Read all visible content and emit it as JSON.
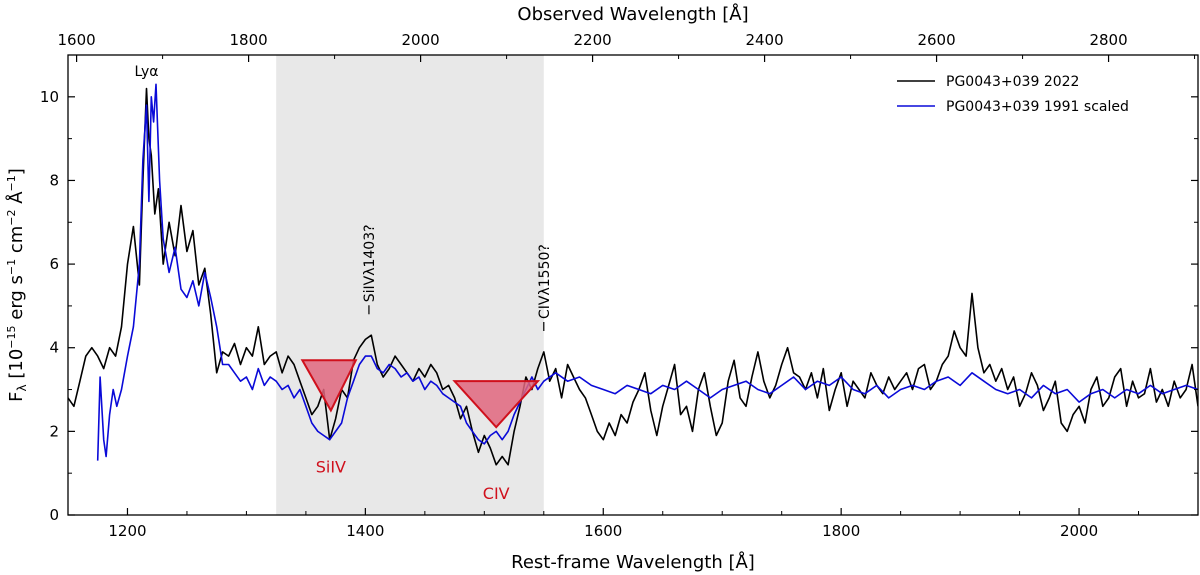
{
  "chart_data": {
    "type": "line",
    "title": "",
    "xlabel": "Rest-frame Wavelength [Å]",
    "x2label": "Observed Wavelength [Å]",
    "ylabel": "F_λ [10^-15 erg s^-1 cm^-2 Å^-1]",
    "xlim": [
      1150,
      2100
    ],
    "ylim": [
      0,
      11
    ],
    "observed_xlim": [
      1590,
      2904
    ],
    "x_ticks": [
      1200,
      1400,
      1600,
      1800,
      2000
    ],
    "x_tick_labels": [
      "1200",
      "1400",
      "1600",
      "1800",
      "2000"
    ],
    "y_ticks": [
      0,
      2,
      4,
      6,
      8,
      10
    ],
    "y_tick_labels": [
      "0",
      "2",
      "4",
      "6",
      "8",
      "10"
    ],
    "top_ticks": [
      1600,
      1800,
      2000,
      2200,
      2400,
      2600,
      2800
    ],
    "top_tick_labels": [
      "1600",
      "1800",
      "2000",
      "2200",
      "2400",
      "2600",
      "2800"
    ],
    "shaded_region": [
      1325,
      1550
    ],
    "legend_position": "top-right",
    "series": [
      {
        "name": "PG0043+039 2022",
        "color": "#000000",
        "x": [
          1150,
          1155,
          1160,
          1165,
          1170,
          1175,
          1180,
          1185,
          1190,
          1195,
          1200,
          1205,
          1210,
          1213,
          1216,
          1218,
          1220,
          1223,
          1226,
          1230,
          1235,
          1240,
          1245,
          1250,
          1255,
          1260,
          1265,
          1270,
          1275,
          1280,
          1285,
          1290,
          1295,
          1300,
          1305,
          1310,
          1315,
          1320,
          1325,
          1330,
          1335,
          1340,
          1345,
          1350,
          1355,
          1360,
          1365,
          1370,
          1375,
          1380,
          1385,
          1390,
          1395,
          1400,
          1405,
          1410,
          1415,
          1420,
          1425,
          1430,
          1435,
          1440,
          1445,
          1450,
          1455,
          1460,
          1465,
          1470,
          1475,
          1480,
          1485,
          1490,
          1495,
          1500,
          1505,
          1510,
          1515,
          1520,
          1525,
          1530,
          1535,
          1540,
          1545,
          1550,
          1555,
          1560,
          1565,
          1570,
          1575,
          1580,
          1585,
          1590,
          1595,
          1600,
          1605,
          1610,
          1615,
          1620,
          1625,
          1630,
          1635,
          1640,
          1645,
          1650,
          1655,
          1660,
          1665,
          1670,
          1675,
          1680,
          1685,
          1690,
          1695,
          1700,
          1705,
          1710,
          1715,
          1720,
          1725,
          1730,
          1735,
          1740,
          1745,
          1750,
          1755,
          1760,
          1765,
          1770,
          1775,
          1780,
          1785,
          1790,
          1795,
          1800,
          1805,
          1810,
          1815,
          1820,
          1825,
          1830,
          1835,
          1840,
          1845,
          1850,
          1855,
          1860,
          1865,
          1870,
          1875,
          1880,
          1885,
          1890,
          1895,
          1900,
          1905,
          1910,
          1915,
          1920,
          1925,
          1930,
          1935,
          1940,
          1945,
          1950,
          1955,
          1960,
          1965,
          1970,
          1975,
          1980,
          1985,
          1990,
          1995,
          2000,
          2005,
          2010,
          2015,
          2020,
          2025,
          2030,
          2035,
          2040,
          2045,
          2050,
          2055,
          2060,
          2065,
          2070,
          2075,
          2080,
          2085,
          2090,
          2095,
          2100
        ],
        "y": [
          2.8,
          2.6,
          3.2,
          3.8,
          4.0,
          3.8,
          3.5,
          4.0,
          3.8,
          4.5,
          6.0,
          6.9,
          5.5,
          8.0,
          10.2,
          9.0,
          8.6,
          7.2,
          7.8,
          6.0,
          7.0,
          6.2,
          7.4,
          6.3,
          6.8,
          5.5,
          5.9,
          4.8,
          3.4,
          3.9,
          3.8,
          4.1,
          3.6,
          4.0,
          3.8,
          4.5,
          3.6,
          3.8,
          3.9,
          3.4,
          3.8,
          3.6,
          3.2,
          2.8,
          2.4,
          2.6,
          3.0,
          1.8,
          2.3,
          3.0,
          2.8,
          3.7,
          4.0,
          4.2,
          4.3,
          3.6,
          3.3,
          3.5,
          3.8,
          3.6,
          3.4,
          3.2,
          3.5,
          3.3,
          3.6,
          3.4,
          3.0,
          3.1,
          2.8,
          2.3,
          2.6,
          2.0,
          1.5,
          1.9,
          1.6,
          1.2,
          1.4,
          1.2,
          2.0,
          2.6,
          3.3,
          3.0,
          3.5,
          3.9,
          3.2,
          3.5,
          2.8,
          3.6,
          3.3,
          3.0,
          2.8,
          2.4,
          2.0,
          1.8,
          2.2,
          1.9,
          2.4,
          2.2,
          2.7,
          3.0,
          3.4,
          2.5,
          1.9,
          2.6,
          3.1,
          3.6,
          2.4,
          2.6,
          2.0,
          3.0,
          3.4,
          2.6,
          1.9,
          2.2,
          3.2,
          3.7,
          2.8,
          2.6,
          3.3,
          3.9,
          3.2,
          2.8,
          3.1,
          3.6,
          4.0,
          3.4,
          3.3,
          3.0,
          3.4,
          2.8,
          3.5,
          2.5,
          3.0,
          3.4,
          2.6,
          3.2,
          3.0,
          2.8,
          3.4,
          3.1,
          2.9,
          3.3,
          3.0,
          3.2,
          3.4,
          3.0,
          3.5,
          3.6,
          3.0,
          3.2,
          3.6,
          3.8,
          4.4,
          4.0,
          3.8,
          5.3,
          4.0,
          3.4,
          3.6,
          3.2,
          3.5,
          3.0,
          3.3,
          2.6,
          2.9,
          3.4,
          3.1,
          2.5,
          2.8,
          3.2,
          2.2,
          2.0,
          2.4,
          2.6,
          2.2,
          3.0,
          3.3,
          2.6,
          2.8,
          3.3,
          3.5,
          2.6,
          3.2,
          2.8,
          2.9,
          3.5,
          2.7,
          3.0,
          2.6,
          3.2,
          2.8,
          3.0,
          3.6,
          2.6
        ]
      },
      {
        "name": "PG0043+039 1991 scaled",
        "color": "#0a0ad8",
        "x": [
          1175,
          1177,
          1180,
          1182,
          1185,
          1188,
          1191,
          1195,
          1200,
          1205,
          1210,
          1213,
          1216,
          1218,
          1220,
          1222,
          1224,
          1227,
          1230,
          1235,
          1240,
          1245,
          1250,
          1255,
          1260,
          1265,
          1270,
          1275,
          1280,
          1285,
          1290,
          1295,
          1300,
          1305,
          1310,
          1315,
          1320,
          1325,
          1330,
          1335,
          1340,
          1345,
          1350,
          1355,
          1360,
          1365,
          1370,
          1375,
          1380,
          1385,
          1390,
          1395,
          1400,
          1405,
          1410,
          1415,
          1420,
          1425,
          1430,
          1435,
          1440,
          1445,
          1450,
          1455,
          1460,
          1465,
          1470,
          1475,
          1480,
          1485,
          1490,
          1495,
          1500,
          1505,
          1510,
          1515,
          1520,
          1525,
          1530,
          1535,
          1540,
          1545,
          1550,
          1560,
          1570,
          1580,
          1590,
          1600,
          1610,
          1620,
          1630,
          1640,
          1650,
          1660,
          1670,
          1680,
          1690,
          1700,
          1710,
          1720,
          1730,
          1740,
          1750,
          1760,
          1770,
          1780,
          1790,
          1800,
          1810,
          1820,
          1830,
          1840,
          1850,
          1860,
          1870,
          1880,
          1890,
          1900,
          1910,
          1920,
          1930,
          1940,
          1950,
          1960,
          1970,
          1980,
          1990,
          2000,
          2010,
          2020,
          2030,
          2040,
          2050,
          2060,
          2070,
          2080,
          2090,
          2100
        ],
        "y": [
          1.3,
          3.3,
          1.8,
          1.4,
          2.4,
          3.0,
          2.6,
          3.0,
          3.8,
          4.5,
          6.0,
          8.5,
          9.8,
          7.5,
          10.0,
          9.4,
          10.3,
          8.0,
          6.6,
          5.8,
          6.4,
          5.4,
          5.2,
          5.6,
          5.0,
          5.8,
          5.2,
          4.5,
          3.6,
          3.6,
          3.4,
          3.2,
          3.3,
          3.0,
          3.5,
          3.1,
          3.3,
          3.2,
          3.0,
          3.1,
          2.8,
          3.0,
          2.6,
          2.2,
          2.0,
          1.9,
          1.8,
          2.0,
          2.2,
          2.8,
          3.2,
          3.6,
          3.8,
          3.8,
          3.5,
          3.4,
          3.6,
          3.5,
          3.3,
          3.4,
          3.2,
          3.3,
          3.0,
          3.2,
          3.1,
          2.9,
          2.8,
          2.7,
          2.6,
          2.2,
          2.0,
          1.8,
          1.7,
          1.9,
          2.0,
          1.8,
          2.0,
          2.4,
          2.7,
          3.0,
          3.3,
          3.0,
          3.2,
          3.4,
          3.2,
          3.3,
          3.1,
          3.0,
          2.9,
          3.1,
          3.0,
          2.9,
          3.1,
          3.0,
          3.2,
          3.0,
          2.8,
          3.0,
          3.1,
          3.2,
          3.0,
          2.9,
          3.1,
          3.3,
          3.0,
          3.2,
          3.1,
          3.3,
          3.0,
          2.9,
          3.1,
          2.8,
          3.0,
          3.1,
          3.0,
          3.2,
          3.3,
          3.1,
          3.4,
          3.2,
          3.0,
          2.9,
          3.0,
          2.8,
          3.1,
          2.9,
          3.0,
          2.7,
          2.9,
          3.0,
          2.8,
          3.0,
          2.9,
          3.1,
          2.9,
          3.0,
          3.1,
          3.0
        ]
      }
    ],
    "markers": [
      {
        "label": "SiIV",
        "x_left": 1347,
        "x_right": 1392,
        "y_top": 3.7,
        "x_tip": 1371,
        "y_tip": 2.5,
        "color": "#d0101c",
        "fill": "#e0667e"
      },
      {
        "label": "CIV",
        "x_left": 1475,
        "x_right": 1545,
        "y_top": 3.2,
        "x_tip": 1510,
        "y_tip": 2.1,
        "color": "#d0101c",
        "fill": "#e0667e"
      }
    ],
    "annotations": [
      {
        "text": "Lyα",
        "x": 1216,
        "y": 10.5
      },
      {
        "text": "SiIVλ1403?",
        "x": 1403,
        "y": 4.8
      },
      {
        "text": "CIVλ1550?",
        "x": 1550,
        "y": 4.4
      }
    ]
  }
}
